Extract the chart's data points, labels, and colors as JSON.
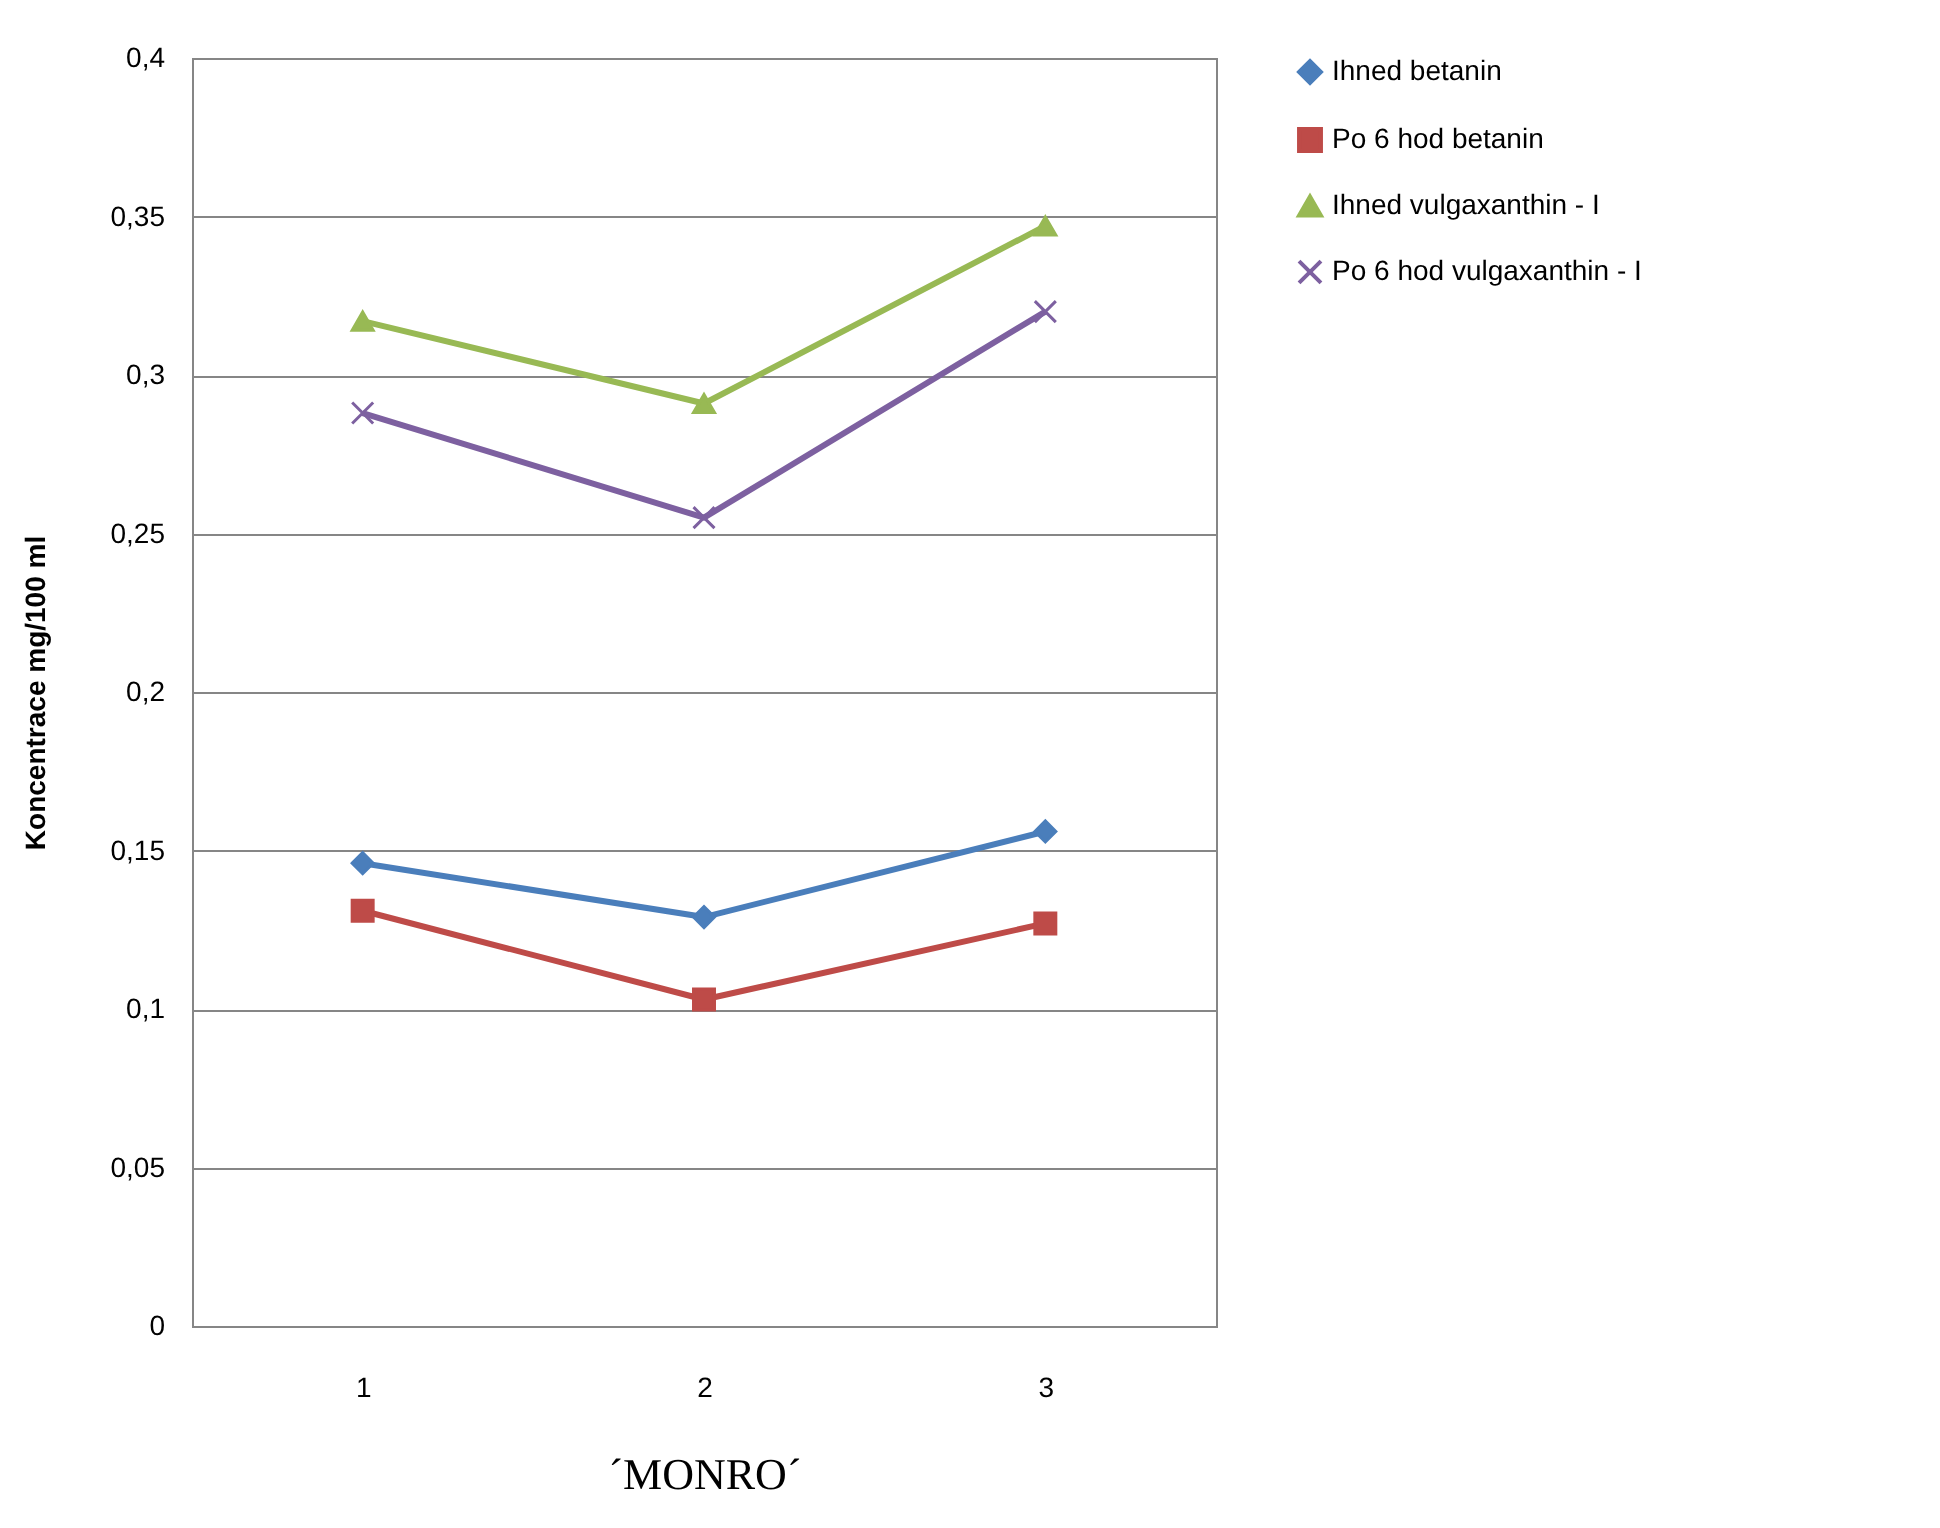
{
  "chart_data": {
    "type": "line",
    "xlabel": "´MONRO´",
    "ylabel": "Koncentrace mg/100 ml",
    "categories": [
      "1",
      "2",
      "3"
    ],
    "series": [
      {
        "name": "Ihned betanin",
        "color": "#4a7ebb",
        "marker": "diamond",
        "values": [
          0.146,
          0.129,
          0.156
        ]
      },
      {
        "name": "Po 6 hod betanin",
        "color": "#be4b48",
        "marker": "square",
        "values": [
          0.131,
          0.103,
          0.127
        ]
      },
      {
        "name": "Ihned vulgaxanthin - I",
        "color": "#98b954",
        "marker": "triangle",
        "values": [
          0.317,
          0.291,
          0.347
        ]
      },
      {
        "name": "Po 6 hod vulgaxanthin - I",
        "color": "#7d60a0",
        "marker": "cross",
        "values": [
          0.288,
          0.255,
          0.32
        ]
      }
    ],
    "ylim": [
      0,
      0.4
    ],
    "yticks": [
      0,
      {
        "value": 0.05,
        "label": "0,05"
      },
      {
        "value": 0.1,
        "label": "0,1"
      },
      {
        "value": 0.15,
        "label": "0,15"
      },
      {
        "value": 0.2,
        "label": "0,2"
      },
      {
        "value": 0.25,
        "label": "0,25"
      },
      {
        "value": 0.3,
        "label": "0,3"
      },
      {
        "value": 0.35,
        "label": "0,35"
      },
      {
        "value": 0.4,
        "label": "0,4"
      }
    ],
    "grid": "y",
    "legend": "right"
  }
}
